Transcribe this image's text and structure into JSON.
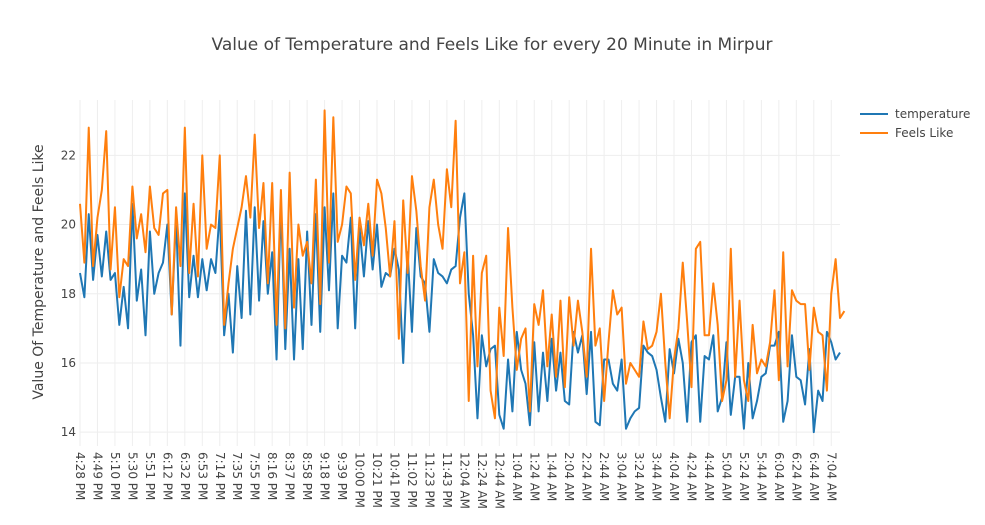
{
  "chart_data": {
    "type": "line",
    "title": "Value of Temperature and Feels Like for every 20 Minute in Mirpur",
    "xlabel": "",
    "ylabel": "Value Of Temperature and Feels Like",
    "ylim": [
      13.6,
      23.6
    ],
    "yticks": [
      14,
      16,
      18,
      20,
      22
    ],
    "xtick_labels": [
      "4:28 PM",
      "4:49 PM",
      "5:10 PM",
      "5:30 PM",
      "5:51 PM",
      "6:12 PM",
      "6:32 PM",
      "6:53 PM",
      "7:14 PM",
      "7:35 PM",
      "7:55 PM",
      "8:16 PM",
      "8:37 PM",
      "8:58 PM",
      "9:18 PM",
      "9:39 PM",
      "10:00 PM",
      "10:21 PM",
      "10:41 PM",
      "11:02 PM",
      "11:23 PM",
      "11:43 PM",
      "12:04 AM",
      "12:24 AM",
      "12:44 AM",
      "1:04 AM",
      "1:24 AM",
      "1:44 AM",
      "2:04 AM",
      "2:24 AM",
      "2:44 AM",
      "3:04 AM",
      "3:24 AM",
      "3:44 AM",
      "4:04 AM",
      "4:24 AM",
      "4:44 AM",
      "5:04 AM",
      "5:24 AM",
      "5:44 AM",
      "6:04 AM",
      "6:24 AM",
      "6:44 AM",
      "7:04 AM"
    ],
    "points_per_tick": 4,
    "grid": true,
    "legend_position": "top-right",
    "series": [
      {
        "name": "temperature",
        "color": "#1f77b4",
        "values": [
          18.6,
          17.9,
          20.3,
          18.4,
          19.7,
          18.5,
          19.8,
          18.4,
          18.6,
          17.1,
          18.2,
          17.0,
          20.6,
          17.8,
          18.7,
          16.8,
          19.8,
          18.0,
          18.6,
          18.9,
          20.0,
          17.4,
          20.2,
          16.5,
          20.9,
          17.9,
          19.1,
          17.9,
          19.0,
          18.1,
          19.0,
          18.6,
          20.4,
          16.8,
          18.0,
          16.3,
          18.8,
          17.3,
          20.4,
          17.4,
          20.5,
          17.8,
          20.1,
          18.0,
          19.2,
          16.1,
          20.6,
          16.4,
          19.3,
          16.1,
          19.0,
          16.4,
          19.8,
          17.1,
          20.3,
          16.9,
          20.5,
          18.1,
          20.9,
          17.0,
          19.1,
          18.9,
          20.2,
          17.0,
          19.9,
          18.5,
          20.1,
          18.7,
          20.0,
          18.2,
          18.6,
          18.5,
          19.3,
          18.7,
          16.0,
          19.2,
          16.9,
          19.9,
          18.5,
          18.3,
          16.9,
          19.0,
          18.6,
          18.5,
          18.3,
          18.7,
          18.8,
          20.2,
          20.9,
          18.0,
          16.8,
          14.4,
          16.8,
          15.9,
          16.4,
          16.5,
          14.5,
          14.1,
          16.1,
          14.6,
          16.9,
          15.8,
          15.4,
          14.2,
          16.6,
          14.6,
          16.3,
          14.9,
          16.7,
          15.2,
          16.3,
          14.9,
          14.8,
          16.9,
          16.3,
          16.8,
          15.1,
          16.9,
          14.3,
          14.2,
          16.1,
          16.1,
          15.4,
          15.2,
          16.1,
          14.1,
          14.4,
          14.6,
          14.7,
          16.5,
          16.3,
          16.2,
          15.8,
          15.0,
          14.3,
          16.4,
          15.7,
          16.7,
          16.0,
          14.3,
          16.6,
          16.8,
          14.3,
          16.2,
          16.1,
          16.8,
          14.6,
          15.0,
          16.6,
          14.5,
          15.6,
          15.6,
          14.1,
          16.0,
          14.4,
          14.9,
          15.6,
          15.7,
          16.5,
          16.5,
          16.9,
          14.3,
          14.9,
          16.8,
          15.6,
          15.5,
          14.8,
          16.4,
          14.0,
          15.2,
          14.9,
          16.9,
          16.6,
          16.1,
          16.3
        ]
      },
      {
        "name": "Feels Like",
        "color": "#ff7f0e",
        "values": [
          20.6,
          18.9,
          22.8,
          18.8,
          20.2,
          21.0,
          22.7,
          18.7,
          20.5,
          17.9,
          19.0,
          18.8,
          21.1,
          19.6,
          20.3,
          19.2,
          21.1,
          19.9,
          19.7,
          20.9,
          21.0,
          17.4,
          20.5,
          18.8,
          22.8,
          18.6,
          20.6,
          18.5,
          22.0,
          19.3,
          20.0,
          19.9,
          22.0,
          17.1,
          18.3,
          19.3,
          19.9,
          20.5,
          21.4,
          20.2,
          22.6,
          19.9,
          21.2,
          18.3,
          21.2,
          17.1,
          21.0,
          17.0,
          21.5,
          17.6,
          20.0,
          19.1,
          19.5,
          18.3,
          21.3,
          17.7,
          23.3,
          18.9,
          23.1,
          19.5,
          20.0,
          21.1,
          20.9,
          18.4,
          20.2,
          19.4,
          20.6,
          19.1,
          21.3,
          20.9,
          19.9,
          18.5,
          20.1,
          16.7,
          20.7,
          18.6,
          21.4,
          20.4,
          18.8,
          17.8,
          20.5,
          21.3,
          20.0,
          19.3,
          21.6,
          20.5,
          23.0,
          18.3,
          19.2,
          14.9,
          19.1,
          15.9,
          18.6,
          19.1,
          15.2,
          14.4,
          17.6,
          16.2,
          19.9,
          17.6,
          15.8,
          16.7,
          17.0,
          14.6,
          17.7,
          17.1,
          18.1,
          15.9,
          17.4,
          15.6,
          17.8,
          15.3,
          17.9,
          16.5,
          17.8,
          16.9,
          15.6,
          19.3,
          16.5,
          17.0,
          14.9,
          16.6,
          18.1,
          17.4,
          17.6,
          15.4,
          16.0,
          15.8,
          15.6,
          17.2,
          16.4,
          16.5,
          16.9,
          18.0,
          16.0,
          14.4,
          16.1,
          17.0,
          18.9,
          17.2,
          15.3,
          19.3,
          19.5,
          16.8,
          16.8,
          18.3,
          17.1,
          14.9,
          15.5,
          19.3,
          15.6,
          17.8,
          15.5,
          14.9,
          17.1,
          15.7,
          16.1,
          15.9,
          16.6,
          18.1,
          15.5,
          19.2,
          15.9,
          18.1,
          17.8,
          17.7,
          17.7,
          15.8,
          17.6,
          16.9,
          16.8,
          15.2,
          18.0,
          19.0,
          17.3,
          17.5
        ]
      }
    ]
  }
}
